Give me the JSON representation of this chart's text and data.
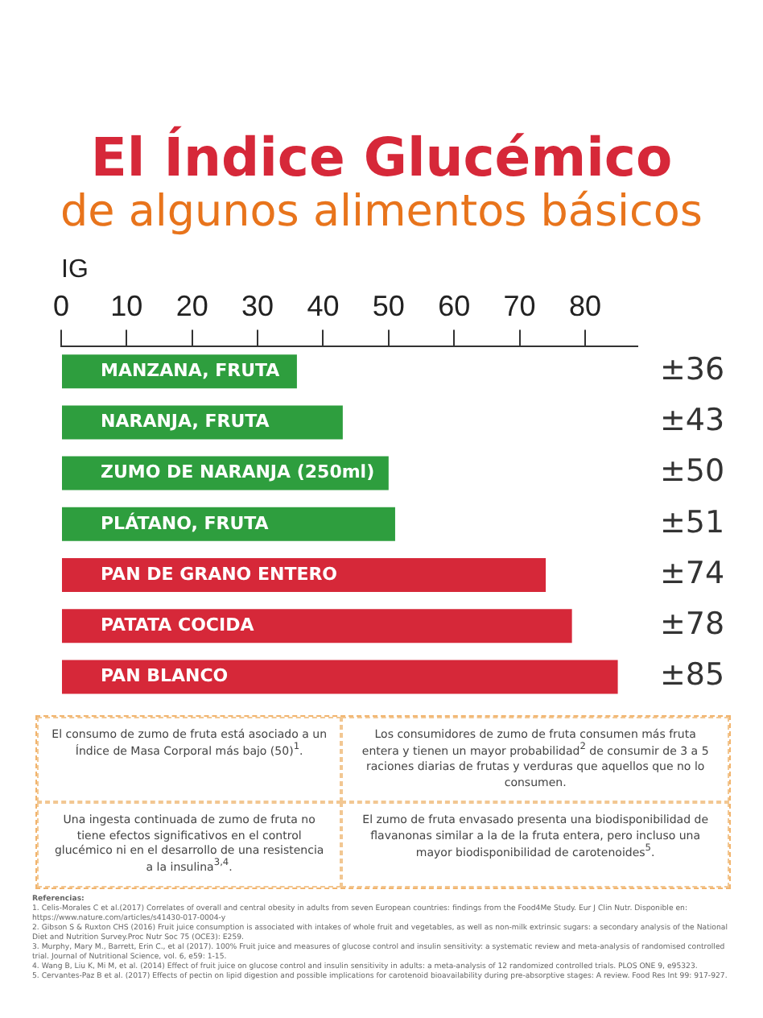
{
  "chart_data": {
    "type": "bar",
    "orientation": "horizontal",
    "title": "El Índice Glucémico",
    "subtitle": "de algunos alimentos básicos",
    "xlabel": "IG",
    "categories": [
      "MANZANA, FRUTA",
      "NARANJA, FRUTA",
      "ZUMO DE NARANJA (250ml)",
      "PLÁTANO, FRUTA",
      "PAN DE GRANO ENTERO",
      "PATATA COCIDA",
      "PAN BLANCO"
    ],
    "values": [
      36,
      43,
      50,
      51,
      74,
      78,
      85
    ],
    "colors": [
      "#2e9e3e",
      "#2e9e3e",
      "#2e9e3e",
      "#2e9e3e",
      "#d62839",
      "#d62839",
      "#d62839"
    ],
    "value_labels": [
      "±36",
      "±43",
      "±50",
      "±51",
      "±74",
      "±78",
      "±85"
    ],
    "xlim": [
      0,
      88
    ],
    "xticks": [
      0,
      10,
      20,
      30,
      40,
      50,
      60,
      70,
      80
    ],
    "grid": false,
    "legend": false,
    "annotations": [
      "El consumo de zumo de fruta está asociado a un Índice de Masa Corporal más bajo (50)$^{1}$.",
      "Los consumidores de zumo de fruta consumen más fruta entera y tienen un mayor probabilidad$^{2}$ de consumir de 3 a 5 raciones diarias de frutas y verduras que aquellos que no lo consumen.",
      "Una ingesta continuada de zumo de fruta no tiene efectos significativos en el control glucémico ni en el desarrollo de una resistencia a la insulina$^{3,4}$.",
      "El zumo de fruta envasado presenta una biodisponibilidad de flavanonas similar a la de la fruta entera, pero incluso una mayor biodisponibilidad de carotenoides$^{5}$.",
      "Referencias:",
      "1. Celis-Morales C et al.(2017) Correlates of overall and central obesity in adults from seven European countries: findings from the Food4Me Study. Eur J Clin Nutr. Disponible en: https://www.nature.com/articles/s41430-017-0004-y",
      "2. Gibson S & Ruxton CHS (2016) Fruit juice consumption is associated with intakes of whole fruit and vegetables, as well as non-milk extrinsic sugars: a secondary analysis of the National Diet and Nutrition Survey.Proc Nutr Soc 75 (OCE3): E259.",
      "3. Murphy, Mary M., Barrett, Erin C., et al (2017). 100% Fruit juice and measures of glucose control and insulin sensitivity: a systematic review and meta-analysis of randomised controlled trial. Journal of Nutritional Science, vol. 6, e59: 1-15.",
      "4. Wang B, Liu K, Mi M, et al. (2014) Effect of fruit juice on glucose control and insulin sensitivity in adults: a meta-analysis of 12 randomized controlled trials. PLOS ONE 9, e95323.",
      "5. Cervantes-Paz B et al. (2017) Effects of pectin on lipid digestion and possible implications for carotenoid bioavailability during pre-absorptive stages: A review. Food Res Int 99: 917-927."
    ]
  }
}
